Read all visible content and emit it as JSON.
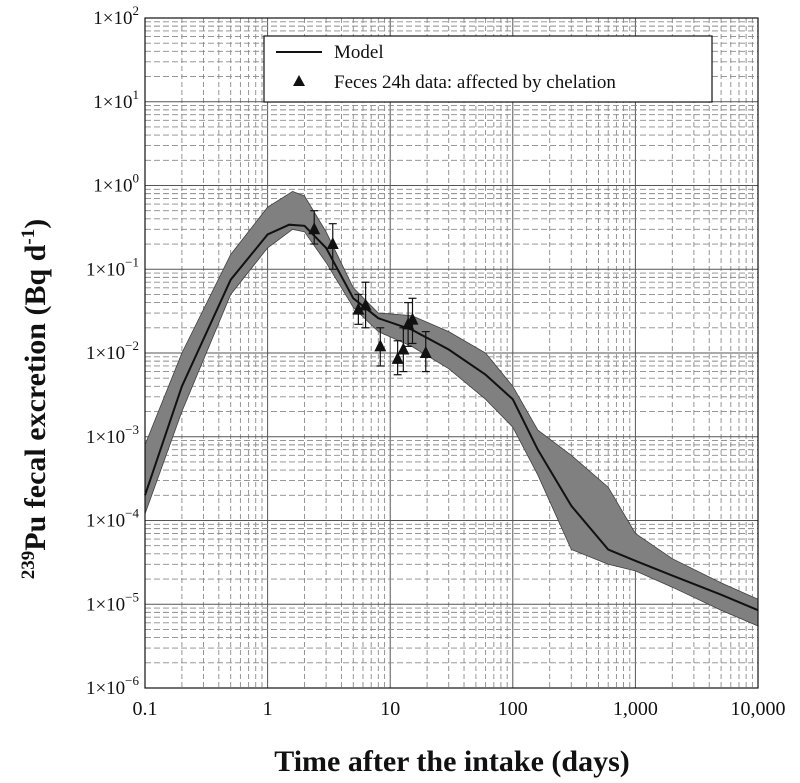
{
  "chart_data": {
    "type": "line",
    "xscale": "log",
    "yscale": "log",
    "xlim": [
      0.1,
      10000
    ],
    "ylim": [
      1e-06,
      100
    ],
    "xlabel": "Time after the intake (days)",
    "ylabel": {
      "superscript": "239",
      "text": "Pu fecal excretion (Bq d",
      "unit_exponent": "-1",
      "close": ")"
    },
    "xtick_labels": [
      "0.1",
      "1",
      "10",
      "100",
      "1,000",
      "10,000"
    ],
    "xtick_values": [
      0.1,
      1,
      10,
      100,
      1000,
      10000
    ],
    "ytick_labels": [
      {
        "mantissa": "1×10",
        "exp": "−6"
      },
      {
        "mantissa": "1×10",
        "exp": "−5"
      },
      {
        "mantissa": "1×10",
        "exp": "−4"
      },
      {
        "mantissa": "1×10",
        "exp": "−3"
      },
      {
        "mantissa": "1×10",
        "exp": "−2"
      },
      {
        "mantissa": "1×10",
        "exp": "−1"
      },
      {
        "mantissa": "1×10",
        "exp": "0"
      },
      {
        "mantissa": "1×10",
        "exp": "1"
      },
      {
        "mantissa": "1×10",
        "exp": "2"
      }
    ],
    "ytick_values": [
      1e-06,
      1e-05,
      0.0001,
      0.001,
      0.01,
      0.1,
      1,
      10,
      100
    ],
    "grid": true,
    "legend": {
      "position": "top-right",
      "entries": [
        {
          "label": "Model",
          "marker": "line"
        },
        {
          "label": "Feces 24h data: affected by chelation",
          "marker": "triangle"
        }
      ]
    },
    "band": {
      "name": "Model uncertainty range",
      "upper": [
        [
          0.1,
          0.0008
        ],
        [
          0.2,
          0.01
        ],
        [
          0.5,
          0.15
        ],
        [
          1,
          0.55
        ],
        [
          1.6,
          0.85
        ],
        [
          2,
          0.75
        ],
        [
          3,
          0.28
        ],
        [
          5,
          0.06
        ],
        [
          8,
          0.03
        ],
        [
          15,
          0.028
        ],
        [
          30,
          0.018
        ],
        [
          60,
          0.01
        ],
        [
          100,
          0.004
        ],
        [
          160,
          0.0012
        ],
        [
          300,
          0.0006
        ],
        [
          600,
          0.00025
        ],
        [
          1000,
          7e-05
        ],
        [
          2000,
          3.5e-05
        ],
        [
          5000,
          1.8e-05
        ],
        [
          10000,
          1.15e-05
        ]
      ],
      "lower": [
        [
          0.1,
          0.00012
        ],
        [
          0.2,
          0.002
        ],
        [
          0.5,
          0.05
        ],
        [
          1,
          0.18
        ],
        [
          1.6,
          0.3
        ],
        [
          2,
          0.28
        ],
        [
          3,
          0.12
        ],
        [
          5,
          0.035
        ],
        [
          8,
          0.018
        ],
        [
          15,
          0.012
        ],
        [
          30,
          0.0065
        ],
        [
          60,
          0.0028
        ],
        [
          100,
          0.0013
        ],
        [
          160,
          0.00035
        ],
        [
          300,
          4.5e-05
        ],
        [
          600,
          3e-05
        ],
        [
          1000,
          2.5e-05
        ],
        [
          2000,
          1.6e-05
        ],
        [
          5000,
          8.5e-06
        ],
        [
          10000,
          5.5e-06
        ]
      ]
    },
    "series": [
      {
        "name": "Model",
        "type": "line",
        "points": [
          [
            0.1,
            0.0002
          ],
          [
            0.2,
            0.004
          ],
          [
            0.5,
            0.075
          ],
          [
            1,
            0.26
          ],
          [
            1.5,
            0.34
          ],
          [
            2,
            0.33
          ],
          [
            3,
            0.18
          ],
          [
            5,
            0.045
          ],
          [
            8,
            0.026
          ],
          [
            15,
            0.019
          ],
          [
            30,
            0.011
          ],
          [
            60,
            0.0055
          ],
          [
            100,
            0.0028
          ],
          [
            160,
            0.0007
          ],
          [
            300,
            0.00015
          ],
          [
            600,
            4.5e-05
          ],
          [
            1000,
            3.3e-05
          ],
          [
            2000,
            2.2e-05
          ],
          [
            5000,
            1.3e-05
          ],
          [
            10000,
            8.5e-06
          ]
        ]
      },
      {
        "name": "Feces 24h data: affected by chelation",
        "type": "scatter",
        "points": [
          {
            "x": 2.4,
            "y": 0.3,
            "lo": 0.2,
            "hi": 0.5
          },
          {
            "x": 3.4,
            "y": 0.2,
            "lo": 0.1,
            "hi": 0.35
          },
          {
            "x": 5.5,
            "y": 0.033,
            "lo": 0.022,
            "hi": 0.05
          },
          {
            "x": 6.3,
            "y": 0.037,
            "lo": 0.02,
            "hi": 0.07
          },
          {
            "x": 8.3,
            "y": 0.012,
            "lo": 0.007,
            "hi": 0.02
          },
          {
            "x": 11.5,
            "y": 0.0085,
            "lo": 0.0055,
            "hi": 0.014
          },
          {
            "x": 12.8,
            "y": 0.011,
            "lo": 0.006,
            "hi": 0.02
          },
          {
            "x": 14,
            "y": 0.022,
            "lo": 0.012,
            "hi": 0.04
          },
          {
            "x": 15.2,
            "y": 0.025,
            "lo": 0.013,
            "hi": 0.045
          },
          {
            "x": 19.5,
            "y": 0.01,
            "lo": 0.006,
            "hi": 0.018
          }
        ]
      }
    ]
  }
}
